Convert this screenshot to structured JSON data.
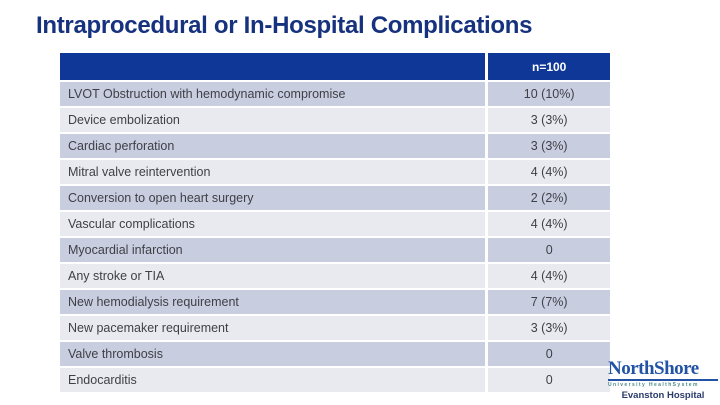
{
  "slide": {
    "title": "Intraprocedural or In-Hospital Complications"
  },
  "table": {
    "header": {
      "col1": "",
      "col2": "n=100"
    },
    "rows": [
      {
        "label": "LVOT Obstruction with hemodynamic compromise",
        "value": "10 (10%)"
      },
      {
        "label": "Device embolization",
        "value": "3 (3%)"
      },
      {
        "label": "Cardiac perforation",
        "value": "3 (3%)"
      },
      {
        "label": "Mitral valve reintervention",
        "value": "4 (4%)"
      },
      {
        "label": "Conversion to open heart surgery",
        "value": "2 (2%)"
      },
      {
        "label": "Vascular complications",
        "value": "4 (4%)"
      },
      {
        "label": "Myocardial infarction",
        "value": "0"
      },
      {
        "label": "Any stroke or TIA",
        "value": "4 (4%)"
      },
      {
        "label": "New hemodialysis requirement",
        "value": "7 (7%)"
      },
      {
        "label": "New pacemaker requirement",
        "value": "3 (3%)"
      },
      {
        "label": "Valve thrombosis",
        "value": "0"
      },
      {
        "label": "Endocarditis",
        "value": "0"
      }
    ]
  },
  "logo": {
    "brand": "NorthShore",
    "tagline": "University HealthSystem",
    "hospital": "Evanston Hospital"
  },
  "colors": {
    "title_color": "#16327F",
    "header_bg": "#0E3798",
    "header_text": "#FFFFFF",
    "row_odd_bg": "#C9CDE0",
    "row_even_bg": "#E9EAEF",
    "row_text": "#3F3F46",
    "logo_blue": "#2253A4",
    "logo_teal": "#4D8A8C",
    "hospital_text": "#2A3A6B"
  }
}
